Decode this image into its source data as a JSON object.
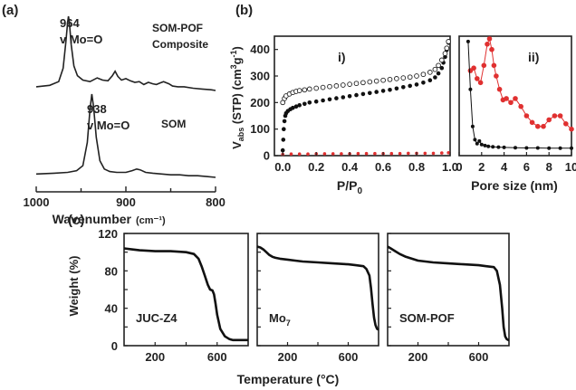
{
  "chart_data": [
    {
      "panel": "(a)",
      "type": "line",
      "xlabel": "Wavenumber",
      "xlabel_unit": "(cm⁻¹)",
      "xlim": [
        1000,
        800
      ],
      "x_ticks": [
        "1000",
        "900",
        "800"
      ],
      "series": [
        {
          "name": "SOM-POF Composite",
          "name_lines": [
            "SOM-POF",
            "Composite"
          ],
          "peak_label": "964",
          "peak_mode": "v Mo=O",
          "x": [
            1000,
            985,
            975,
            970,
            967,
            965,
            964,
            963,
            961,
            958,
            954,
            948,
            940,
            932,
            926,
            920,
            915,
            912,
            909,
            905,
            900,
            895,
            890,
            885,
            880,
            875,
            870,
            866,
            862,
            858,
            852,
            848,
            842,
            835,
            825,
            815,
            805,
            800
          ],
          "y": [
            0.05,
            0.07,
            0.12,
            0.3,
            0.65,
            0.92,
            1.0,
            0.92,
            0.62,
            0.33,
            0.2,
            0.14,
            0.12,
            0.17,
            0.14,
            0.13,
            0.2,
            0.26,
            0.19,
            0.14,
            0.16,
            0.13,
            0.11,
            0.12,
            0.08,
            0.11,
            0.09,
            0.08,
            0.1,
            0.12,
            0.09,
            0.06,
            0.05,
            0.05,
            0.03,
            0.02,
            0.01,
            0.0
          ]
        },
        {
          "name": "SOM",
          "name_lines": [
            "SOM"
          ],
          "peak_label": "938",
          "peak_mode": "v Mo=O",
          "x": [
            1000,
            980,
            965,
            955,
            948,
            943,
            940,
            938,
            936,
            933,
            929,
            924,
            918,
            910,
            900,
            893,
            888,
            884,
            878,
            870,
            860,
            850,
            840,
            830,
            820,
            810,
            800
          ],
          "y": [
            0.04,
            0.05,
            0.06,
            0.08,
            0.14,
            0.42,
            0.82,
            1.0,
            0.84,
            0.48,
            0.2,
            0.1,
            0.07,
            0.06,
            0.06,
            0.08,
            0.1,
            0.09,
            0.06,
            0.05,
            0.04,
            0.03,
            0.03,
            0.02,
            0.02,
            0.01,
            0.0
          ]
        }
      ]
    },
    {
      "panel": "(b)",
      "sub": "i)",
      "type": "scatter",
      "xlabel": "P/P",
      "xlabel_sub": "0",
      "ylabel": "V",
      "ylabel_sub": "abs",
      "ylabel_rest": " (STP)  (cm",
      "ylabel_sup": "3",
      "ylabel_end": "g",
      "ylabel_sup2": "-1",
      "ylabel_close": ")",
      "xlim": [
        -0.05,
        1.0
      ],
      "ylim": [
        0,
        450
      ],
      "x_ticks": [
        "0.0",
        "0.2",
        "0.4",
        "0.6",
        "0.8",
        "1.0"
      ],
      "y_ticks": [
        "0",
        "100",
        "200",
        "300",
        "400"
      ],
      "series": [
        {
          "marker": "filled-black",
          "x": [
            0.0,
            0.003,
            0.006,
            0.01,
            0.015,
            0.02,
            0.03,
            0.045,
            0.06,
            0.08,
            0.1,
            0.13,
            0.16,
            0.2,
            0.24,
            0.28,
            0.32,
            0.36,
            0.4,
            0.44,
            0.48,
            0.52,
            0.56,
            0.6,
            0.64,
            0.68,
            0.72,
            0.76,
            0.8,
            0.84,
            0.88,
            0.91,
            0.93,
            0.95,
            0.96,
            0.97,
            0.98,
            0.99
          ],
          "y": [
            20,
            60,
            100,
            130,
            150,
            160,
            168,
            175,
            180,
            185,
            190,
            195,
            200,
            204,
            208,
            212,
            216,
            220,
            224,
            228,
            232,
            236,
            240,
            244,
            248,
            253,
            258,
            263,
            268,
            275,
            284,
            295,
            310,
            330,
            350,
            372,
            398,
            425
          ]
        },
        {
          "marker": "open-black",
          "x": [
            0.0,
            0.01,
            0.02,
            0.04,
            0.06,
            0.08,
            0.1,
            0.13,
            0.16,
            0.2,
            0.24,
            0.28,
            0.32,
            0.36,
            0.4,
            0.44,
            0.48,
            0.52,
            0.56,
            0.6,
            0.64,
            0.68,
            0.72,
            0.76,
            0.8,
            0.84,
            0.88,
            0.91,
            0.93,
            0.95,
            0.97,
            0.98,
            0.99
          ],
          "y": [
            200,
            215,
            225,
            232,
            238,
            242,
            245,
            248,
            251,
            254,
            257,
            260,
            263,
            266,
            269,
            272,
            275,
            278,
            281,
            284,
            287,
            290,
            293,
            296,
            300,
            306,
            314,
            325,
            340,
            360,
            385,
            405,
            430
          ]
        },
        {
          "marker": "red",
          "x": [
            0.0,
            0.05,
            0.1,
            0.15,
            0.2,
            0.25,
            0.3,
            0.35,
            0.4,
            0.45,
            0.5,
            0.55,
            0.6,
            0.65,
            0.7,
            0.75,
            0.8,
            0.85,
            0.9,
            0.95,
            0.99
          ],
          "y": [
            5,
            6,
            6,
            6,
            7,
            7,
            7,
            7,
            7,
            8,
            8,
            8,
            8,
            8,
            8,
            9,
            9,
            9,
            9,
            10,
            11
          ]
        }
      ]
    },
    {
      "panel": "(b)",
      "sub": "ii)",
      "type": "line",
      "xlabel": "Pore size (nm)",
      "xlim": [
        0,
        10
      ],
      "ylim": [
        0,
        450
      ],
      "x_ticks": [
        "0",
        "2",
        "4",
        "6",
        "8",
        "10"
      ],
      "series": [
        {
          "color": "#e03030",
          "x": [
            1.0,
            1.3,
            1.6,
            1.9,
            2.2,
            2.5,
            2.7,
            2.9,
            3.1,
            3.3,
            3.6,
            3.9,
            4.2,
            4.6,
            5.0,
            5.5,
            6.0,
            6.5,
            7.0,
            7.5,
            8.0,
            8.5,
            9.0,
            9.5,
            10.0
          ],
          "y": [
            320,
            330,
            290,
            275,
            340,
            420,
            440,
            400,
            340,
            300,
            250,
            210,
            215,
            200,
            215,
            185,
            150,
            125,
            110,
            110,
            135,
            150,
            150,
            120,
            100
          ]
        },
        {
          "color": "#111111",
          "x": [
            0.8,
            1.0,
            1.2,
            1.4,
            1.6,
            1.8,
            2.0,
            2.3,
            2.6,
            3.0,
            3.5,
            4.0,
            5.0,
            6.0,
            7.0,
            8.0,
            9.0,
            10.0
          ],
          "y": [
            430,
            250,
            110,
            60,
            45,
            55,
            42,
            38,
            35,
            33,
            32,
            31,
            30,
            29,
            29,
            28,
            28,
            28
          ]
        }
      ]
    },
    {
      "panel": "(c)",
      "type": "line",
      "xlabel": "Temperature (°C)",
      "ylabel": "Weight (%)",
      "ylim": [
        0,
        120
      ],
      "y_ticks": [
        "0",
        "40",
        "80",
        "120"
      ],
      "y_ticks_minor": [
        "20",
        "60",
        "100"
      ],
      "subplots": [
        {
          "name": "JUC-Z4",
          "xlim": [
            0,
            800
          ],
          "x_ticks": [
            "200",
            "600"
          ],
          "x": [
            0,
            50,
            100,
            200,
            300,
            400,
            450,
            480,
            500,
            520,
            540,
            555,
            570,
            580,
            590,
            600,
            620,
            650,
            680,
            700,
            720,
            750,
            780,
            800
          ],
          "y": [
            104,
            103,
            102,
            101,
            101,
            100,
            98,
            93,
            85,
            75,
            65,
            60,
            59,
            55,
            45,
            33,
            18,
            10,
            7,
            6,
            6,
            6,
            6,
            6
          ]
        },
        {
          "name": "Mo",
          "name_sub": "7",
          "xlim": [
            0,
            800
          ],
          "x_ticks": [
            "200",
            "600"
          ],
          "x": [
            0,
            20,
            40,
            60,
            80,
            100,
            120,
            150,
            200,
            250,
            300,
            400,
            500,
            600,
            650,
            700,
            720,
            740,
            750,
            760,
            770,
            780,
            790,
            800
          ],
          "y": [
            106,
            105,
            103,
            100,
            97,
            95,
            94,
            93,
            92,
            91,
            90,
            89,
            88,
            87,
            86,
            85,
            82,
            75,
            62,
            45,
            30,
            22,
            18,
            17
          ]
        },
        {
          "name": "SOM-POF",
          "xlim": [
            0,
            800
          ],
          "x_ticks": [
            "200",
            "600"
          ],
          "x": [
            0,
            20,
            50,
            80,
            120,
            160,
            200,
            300,
            400,
            500,
            600,
            650,
            700,
            720,
            740,
            755,
            765,
            775,
            785,
            795,
            800
          ],
          "y": [
            106,
            104,
            101,
            98,
            95,
            93,
            91,
            89,
            88,
            87,
            86,
            85,
            84,
            80,
            65,
            40,
            20,
            10,
            7,
            6,
            6
          ]
        }
      ]
    }
  ]
}
